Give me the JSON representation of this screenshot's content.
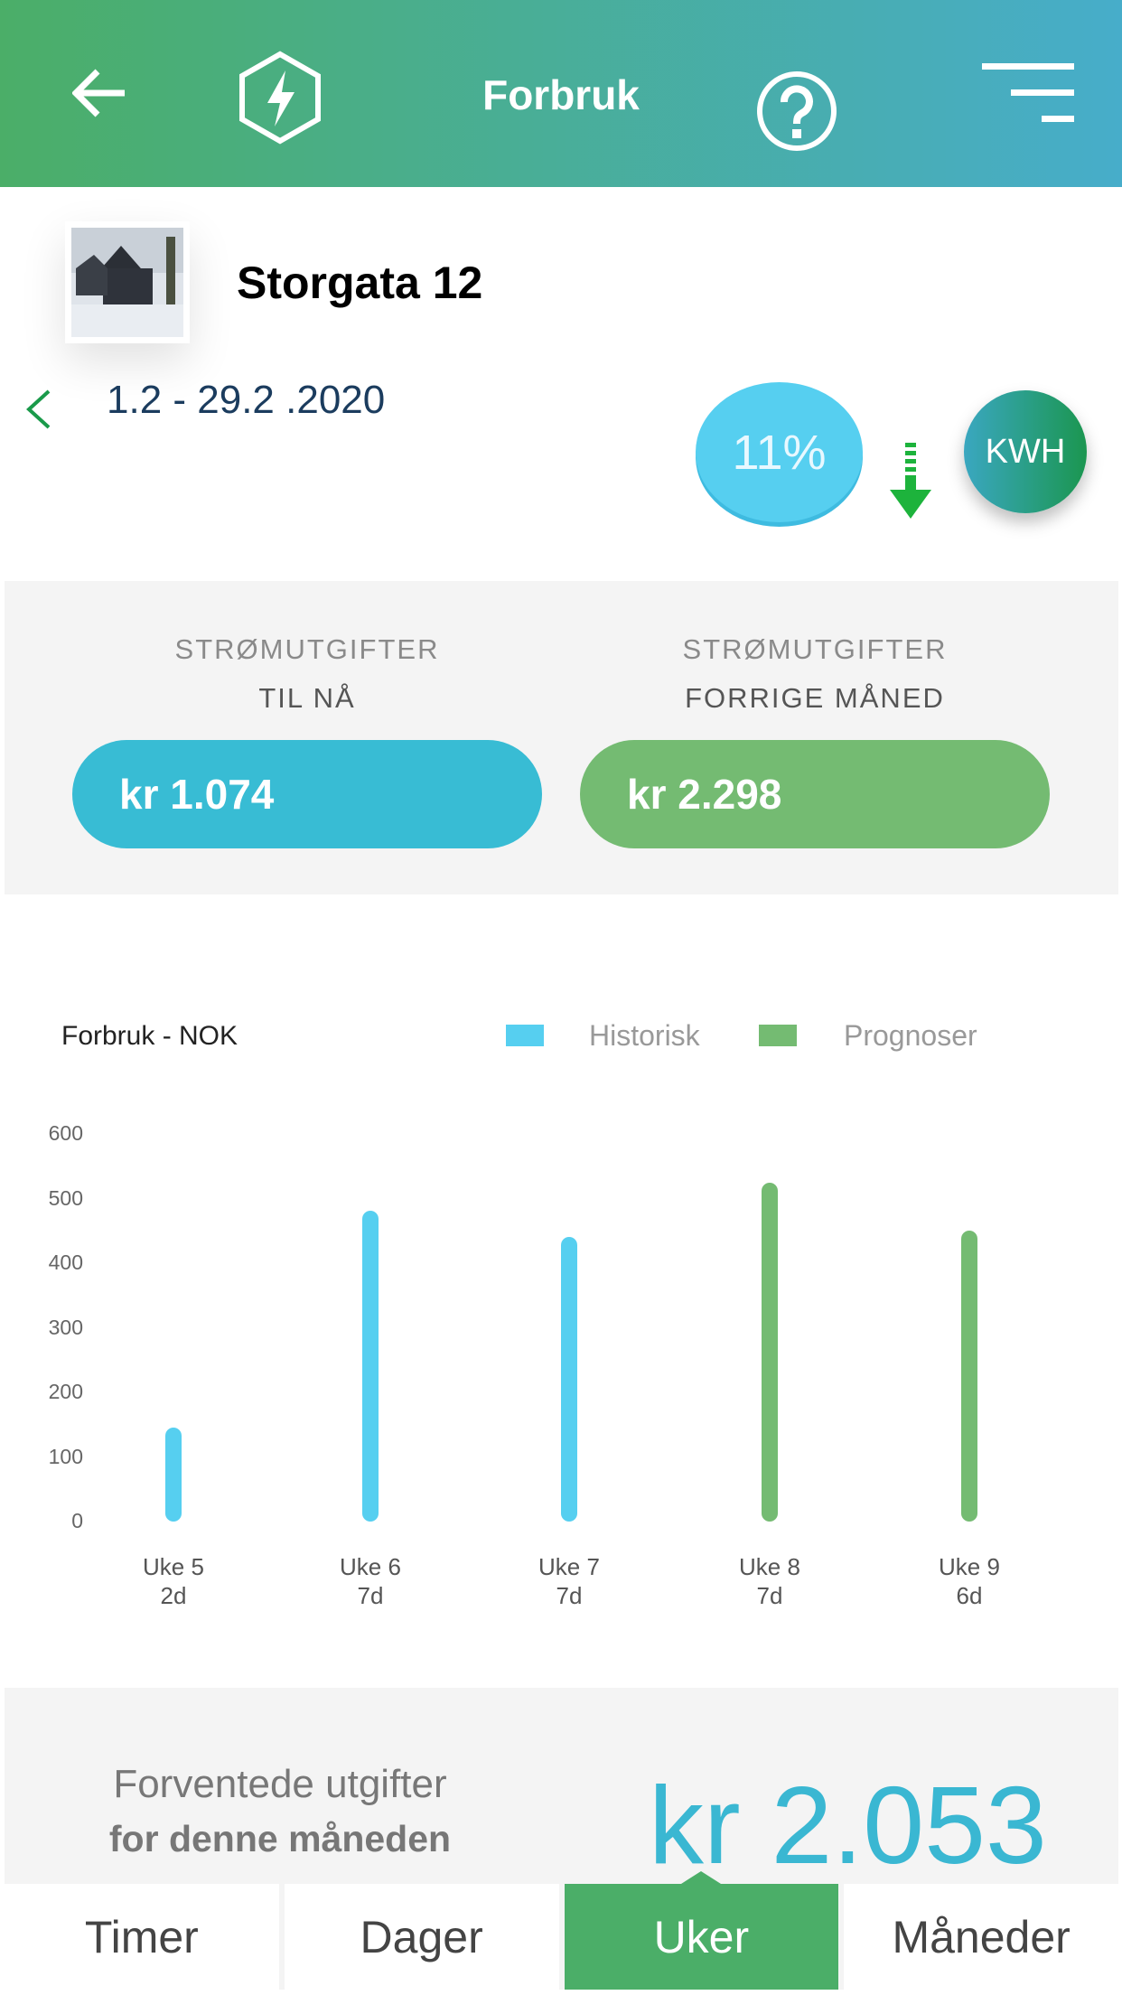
{
  "header": {
    "title": "Forbruk",
    "icons": [
      "back-arrow-icon",
      "lightning-hexagon-icon",
      "help-icon",
      "menu-icon"
    ]
  },
  "property": {
    "address": "Storgata 12",
    "period": "1.2 - 29.2 .2020",
    "change_percent": "11%",
    "change_direction": "down",
    "unit_toggle": "KWH"
  },
  "costs": {
    "current": {
      "label1": "STRØMUTGIFTER",
      "label2": "TIL NÅ",
      "value": "kr 1.074",
      "color": "#38bcd4"
    },
    "previous": {
      "label1": "STRØMUTGIFTER",
      "label2": "FORRIGE MÅNED",
      "value": "kr 2.298",
      "color": "#74bb72"
    }
  },
  "chart_data": {
    "type": "bar",
    "title": "Forbruk - NOK",
    "legend": [
      {
        "name": "Historisk",
        "color": "#56cff0"
      },
      {
        "name": "Prognoser",
        "color": "#74bb72"
      }
    ],
    "categories": [
      {
        "week": "Uke 5",
        "days": "2d"
      },
      {
        "week": "Uke 6",
        "days": "7d"
      },
      {
        "week": "Uke 7",
        "days": "7d"
      },
      {
        "week": "Uke 8",
        "days": "7d"
      },
      {
        "week": "Uke 9",
        "days": "6d"
      }
    ],
    "values": [
      145,
      481,
      441,
      525,
      450
    ],
    "series_type": [
      "Historisk",
      "Historisk",
      "Historisk",
      "Prognoser",
      "Prognoser"
    ],
    "yticks": [
      "0",
      "100",
      "200",
      "300",
      "400",
      "500",
      "600"
    ],
    "ylim": [
      0,
      600
    ],
    "grid": false,
    "legend_position": "top-right"
  },
  "forecast": {
    "line1": "Forventede utgifter",
    "line2": "for denne måneden",
    "value": "kr 2.053"
  },
  "tabs": [
    {
      "label": "Timer"
    },
    {
      "label": "Dager"
    },
    {
      "label": "Uker",
      "active": true
    },
    {
      "label": "Måneder"
    }
  ]
}
